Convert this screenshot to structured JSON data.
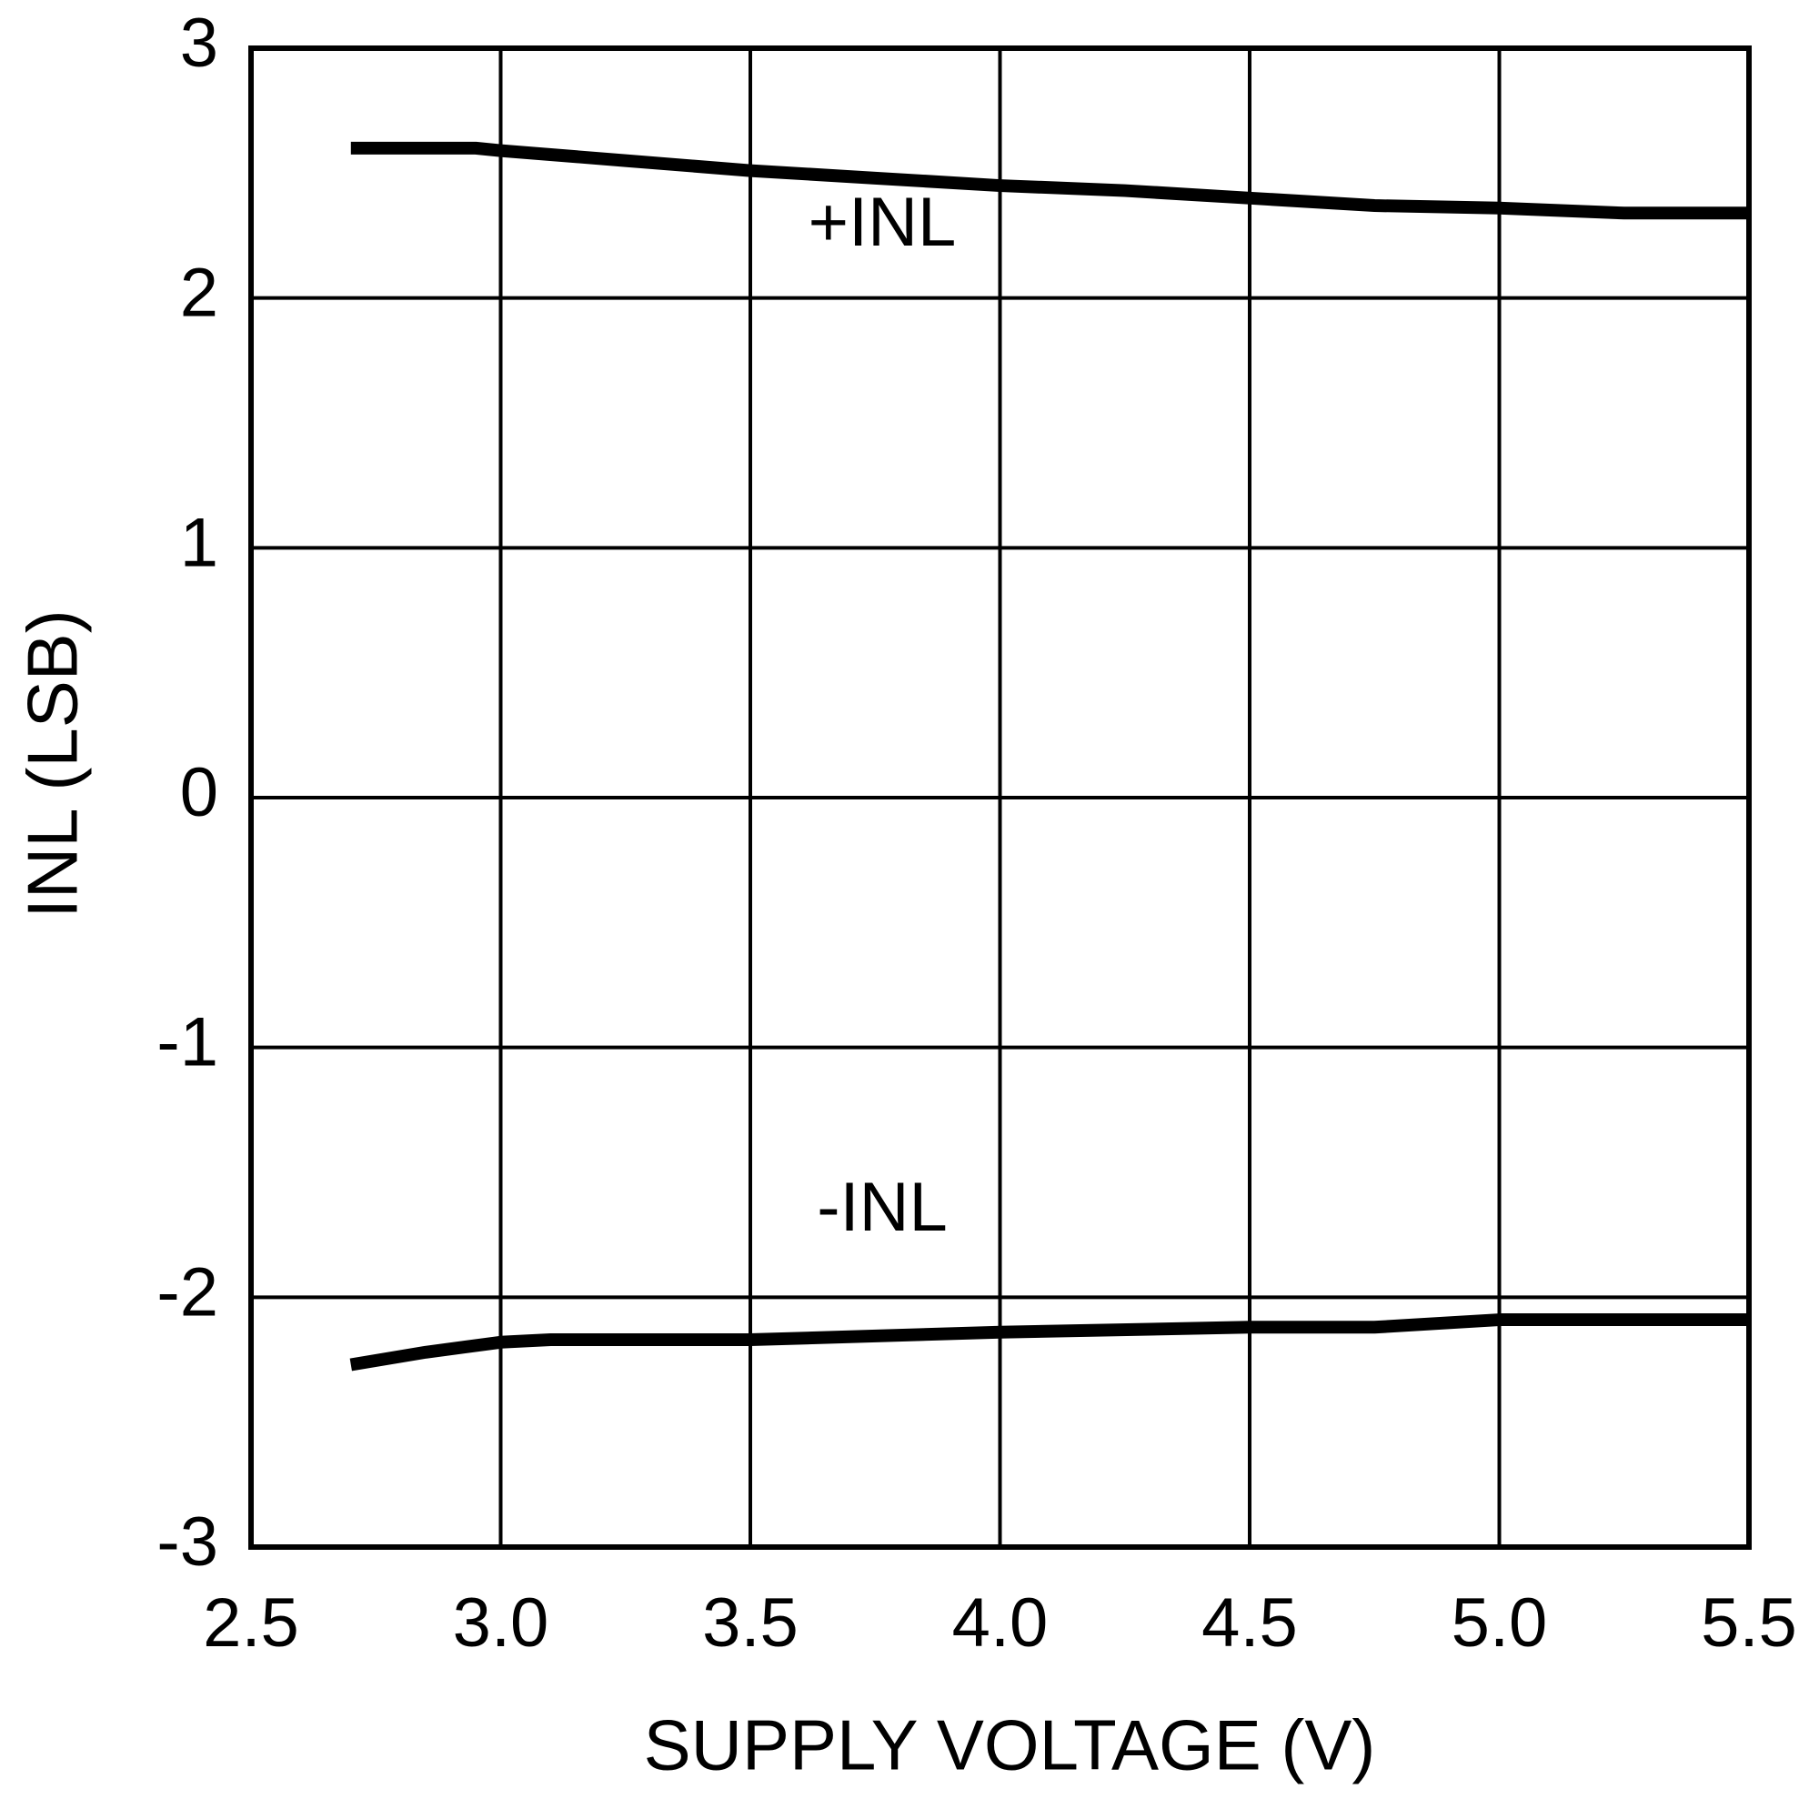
{
  "chart_data": {
    "type": "line",
    "x_label": "SUPPLY VOLTAGE (V)",
    "y_label": "INL (LSB)",
    "xlim": [
      2.5,
      5.5
    ],
    "ylim": [
      -3,
      3
    ],
    "xticks": [
      2.5,
      {
        "value": 3,
        "label": "3.0"
      },
      3.5,
      {
        "value": 4,
        "label": "4.0"
      },
      4.5,
      {
        "value": 5,
        "label": "5.0"
      },
      5.5
    ],
    "yticks": [
      -3,
      -2,
      -1,
      0,
      1,
      2,
      3
    ],
    "grid": true,
    "series": [
      {
        "name": "+INL",
        "color": "#000000",
        "x": [
          2.7,
          2.95,
          3.0,
          3.25,
          3.5,
          3.75,
          4.0,
          4.25,
          4.5,
          4.75,
          5.0,
          5.25,
          5.5
        ],
        "values": [
          2.6,
          2.6,
          2.59,
          2.55,
          2.51,
          2.48,
          2.45,
          2.43,
          2.4,
          2.37,
          2.36,
          2.34,
          2.34
        ]
      },
      {
        "name": "-INL",
        "color": "#000000",
        "x": [
          2.7,
          2.85,
          3.0,
          3.1,
          3.5,
          4.0,
          4.5,
          4.75,
          5.0,
          5.5
        ],
        "values": [
          -2.27,
          -2.22,
          -2.18,
          -2.17,
          -2.17,
          -2.14,
          -2.12,
          -2.12,
          -2.09,
          -2.09
        ]
      }
    ]
  }
}
